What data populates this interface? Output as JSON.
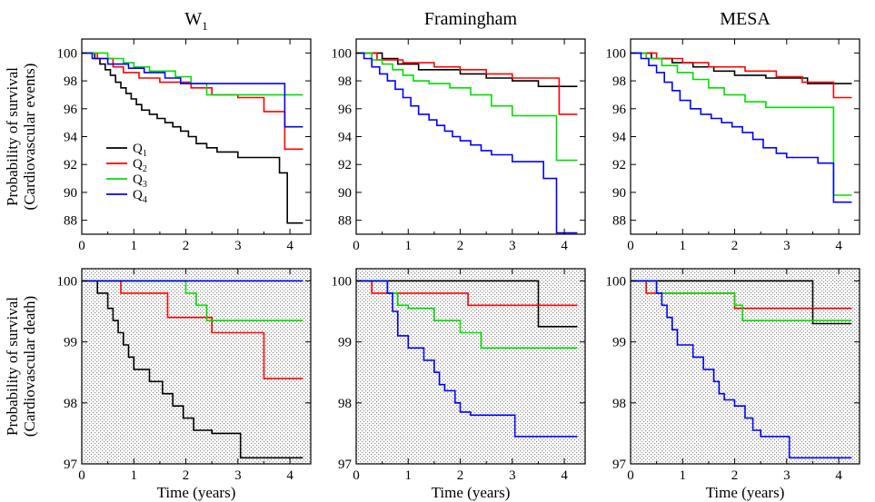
{
  "figure": {
    "column_titles": [
      {
        "base": "W",
        "sub": "1"
      },
      {
        "base": "Framingham",
        "sub": ""
      },
      {
        "base": "MESA",
        "sub": ""
      }
    ],
    "row_ylabels": [
      {
        "line1": "Probability of survival",
        "line2": "(Cardiovascular events)"
      },
      {
        "line1": "Probability of survival",
        "line2": "(Cardiovascular death)"
      }
    ],
    "xlabel": "Time (years)"
  },
  "legend": {
    "items": [
      {
        "base": "Q",
        "sub": "1",
        "color": "#000000"
      },
      {
        "base": "Q",
        "sub": "2",
        "color": "#ff0000"
      },
      {
        "base": "Q",
        "sub": "3",
        "color": "#00dd00"
      },
      {
        "base": "Q",
        "sub": "4",
        "color": "#0000ff"
      }
    ]
  },
  "colors": {
    "Q1": "#000000",
    "Q2": "#ff0000",
    "Q3": "#00dd00",
    "Q4": "#0000ff",
    "shaded_bg": "#e6e6e6"
  },
  "chart_data": [
    {
      "type": "line",
      "step": true,
      "title": "W1",
      "row": 0,
      "col": 0,
      "xlabel": "",
      "ylabel": "Probability of survival (Cardiovascular events)",
      "xlim": [
        0,
        4.4
      ],
      "ylim": [
        87,
        101
      ],
      "xticks": [
        0,
        1,
        2,
        3,
        4
      ],
      "yticks": [
        88,
        90,
        92,
        94,
        96,
        98,
        100
      ],
      "shaded": false,
      "series": [
        {
          "name": "Q1",
          "x": [
            0,
            0.25,
            0.35,
            0.45,
            0.55,
            0.65,
            0.75,
            0.85,
            0.95,
            1.05,
            1.15,
            1.3,
            1.45,
            1.6,
            1.75,
            1.9,
            2.05,
            2.2,
            2.4,
            2.6,
            3.0,
            3.8,
            3.95,
            4.25
          ],
          "y": [
            100,
            99.6,
            99.2,
            98.8,
            98.4,
            97.9,
            97.5,
            97.1,
            96.7,
            96.3,
            95.9,
            95.6,
            95.3,
            95.0,
            94.7,
            94.4,
            94.0,
            93.5,
            93.2,
            92.9,
            92.5,
            91.4,
            87.8,
            87.8
          ]
        },
        {
          "name": "Q2",
          "x": [
            0,
            0.3,
            0.6,
            0.8,
            1.1,
            1.5,
            2.1,
            2.5,
            3.0,
            3.5,
            3.9,
            4.25
          ],
          "y": [
            100,
            99.6,
            99.0,
            98.6,
            98.2,
            97.9,
            97.5,
            97.0,
            96.8,
            95.8,
            93.1,
            93.1
          ]
        },
        {
          "name": "Q3",
          "x": [
            0,
            0.5,
            0.8,
            1.0,
            1.3,
            1.8,
            2.1,
            2.4,
            4.25
          ],
          "y": [
            100,
            99.6,
            99.3,
            99.0,
            98.7,
            98.3,
            97.8,
            97.0,
            97.0
          ]
        },
        {
          "name": "Q4",
          "x": [
            0,
            0.2,
            0.5,
            0.9,
            1.2,
            1.6,
            1.9,
            3.9,
            4.25
          ],
          "y": [
            100,
            99.6,
            99.2,
            98.9,
            98.6,
            98.2,
            97.8,
            94.7,
            94.7
          ]
        }
      ]
    },
    {
      "type": "line",
      "step": true,
      "title": "Framingham",
      "row": 0,
      "col": 1,
      "xlabel": "",
      "ylabel": "",
      "xlim": [
        0,
        4.4
      ],
      "ylim": [
        87,
        101
      ],
      "xticks": [
        0,
        1,
        2,
        3,
        4
      ],
      "yticks": [
        88,
        90,
        92,
        94,
        96,
        98,
        100
      ],
      "shaded": false,
      "series": [
        {
          "name": "Q1",
          "x": [
            0,
            0.5,
            0.8,
            1.2,
            2.0,
            2.5,
            3.0,
            3.5,
            4.25
          ],
          "y": [
            100,
            99.6,
            99.2,
            98.8,
            98.5,
            98.2,
            98.0,
            97.6,
            97.6
          ]
        },
        {
          "name": "Q2",
          "x": [
            0,
            0.4,
            0.9,
            1.5,
            2.0,
            2.5,
            3.0,
            3.9,
            4.25
          ],
          "y": [
            100,
            99.5,
            99.3,
            99.0,
            98.8,
            98.5,
            98.2,
            95.6,
            95.6
          ]
        },
        {
          "name": "Q3",
          "x": [
            0,
            0.3,
            0.5,
            0.7,
            0.9,
            1.1,
            1.4,
            1.8,
            2.2,
            2.6,
            3.0,
            3.85,
            4.25
          ],
          "y": [
            100,
            99.5,
            99.2,
            98.8,
            98.4,
            98.0,
            97.8,
            97.5,
            97.0,
            96.2,
            95.5,
            92.3,
            92.3
          ]
        },
        {
          "name": "Q4",
          "x": [
            0,
            0.15,
            0.3,
            0.45,
            0.6,
            0.75,
            0.9,
            1.05,
            1.2,
            1.4,
            1.55,
            1.7,
            1.85,
            2.0,
            2.2,
            2.4,
            2.6,
            3.0,
            3.6,
            3.85,
            4.25
          ],
          "y": [
            100,
            99.6,
            99.0,
            98.5,
            98.0,
            97.4,
            96.8,
            96.2,
            95.6,
            95.2,
            94.8,
            94.4,
            94.0,
            93.7,
            93.4,
            93.0,
            92.7,
            92.2,
            91.0,
            87.1,
            87.1
          ]
        }
      ]
    },
    {
      "type": "line",
      "step": true,
      "title": "MESA",
      "row": 0,
      "col": 2,
      "xlabel": "",
      "ylabel": "",
      "xlim": [
        0,
        4.4
      ],
      "ylim": [
        87,
        101
      ],
      "xticks": [
        0,
        1,
        2,
        3,
        4
      ],
      "yticks": [
        88,
        90,
        92,
        94,
        96,
        98,
        100
      ],
      "shaded": false,
      "series": [
        {
          "name": "Q1",
          "x": [
            0,
            0.4,
            0.8,
            1.2,
            1.6,
            2.0,
            2.6,
            3.4,
            4.25
          ],
          "y": [
            100,
            99.6,
            99.3,
            99.0,
            98.7,
            98.4,
            98.2,
            97.8,
            97.8
          ]
        },
        {
          "name": "Q2",
          "x": [
            0,
            0.5,
            1.0,
            1.5,
            2.2,
            2.8,
            3.3,
            3.9,
            4.25
          ],
          "y": [
            100,
            99.6,
            99.3,
            99.0,
            98.7,
            98.3,
            97.9,
            96.8,
            96.8
          ]
        },
        {
          "name": "Q3",
          "x": [
            0,
            0.3,
            0.6,
            0.9,
            1.2,
            1.5,
            1.8,
            2.2,
            2.6,
            3.9,
            4.25
          ],
          "y": [
            100,
            99.6,
            99.1,
            98.6,
            98.1,
            97.5,
            97.0,
            96.5,
            96.1,
            89.8,
            89.8
          ]
        },
        {
          "name": "Q4",
          "x": [
            0,
            0.2,
            0.35,
            0.5,
            0.65,
            0.8,
            0.95,
            1.15,
            1.35,
            1.55,
            1.75,
            1.95,
            2.15,
            2.35,
            2.55,
            2.8,
            3.0,
            3.6,
            3.9,
            4.25
          ],
          "y": [
            100,
            99.6,
            99.1,
            98.6,
            97.9,
            97.3,
            96.6,
            96.0,
            95.6,
            95.3,
            95.0,
            94.7,
            94.3,
            93.8,
            93.2,
            92.8,
            92.5,
            92.1,
            89.3,
            89.3
          ]
        }
      ]
    },
    {
      "type": "line",
      "step": true,
      "title": "W1",
      "row": 1,
      "col": 0,
      "xlabel": "Time (years)",
      "ylabel": "Probability of survival (Cardiovascular death)",
      "xlim": [
        0,
        4.4
      ],
      "ylim": [
        97,
        100.2
      ],
      "xticks": [
        0,
        1,
        2,
        3,
        4
      ],
      "yticks": [
        97,
        98,
        99,
        100
      ],
      "shaded": true,
      "series": [
        {
          "name": "Q1",
          "x": [
            0,
            0.3,
            0.5,
            0.6,
            0.7,
            0.8,
            0.9,
            1.0,
            1.3,
            1.55,
            1.75,
            1.95,
            2.15,
            2.5,
            3.05,
            4.25
          ],
          "y": [
            100,
            99.8,
            99.55,
            99.35,
            99.15,
            98.95,
            98.75,
            98.55,
            98.35,
            98.15,
            97.95,
            97.75,
            97.55,
            97.5,
            97.1,
            97.1
          ]
        },
        {
          "name": "Q2",
          "x": [
            0,
            0.75,
            1.65,
            2.5,
            3.5,
            4.25
          ],
          "y": [
            100,
            99.8,
            99.4,
            99.15,
            98.4,
            98.4
          ]
        },
        {
          "name": "Q3",
          "x": [
            0,
            2.0,
            2.2,
            2.4,
            4.25
          ],
          "y": [
            100,
            99.8,
            99.6,
            99.35,
            99.35
          ]
        },
        {
          "name": "Q4",
          "x": [
            0,
            4.25
          ],
          "y": [
            100,
            100
          ]
        }
      ]
    },
    {
      "type": "line",
      "step": true,
      "title": "Framingham",
      "row": 1,
      "col": 1,
      "xlabel": "Time (years)",
      "ylabel": "",
      "xlim": [
        0,
        4.4
      ],
      "ylim": [
        97,
        100.2
      ],
      "xticks": [
        0,
        1,
        2,
        3,
        4
      ],
      "yticks": [
        97,
        98,
        99,
        100
      ],
      "shaded": true,
      "series": [
        {
          "name": "Q1",
          "x": [
            0,
            3.5,
            4.25
          ],
          "y": [
            100,
            99.25,
            99.25
          ]
        },
        {
          "name": "Q2",
          "x": [
            0,
            0.3,
            2.15,
            4.25
          ],
          "y": [
            100,
            99.8,
            99.6,
            99.6
          ]
        },
        {
          "name": "Q3",
          "x": [
            0,
            0.6,
            0.8,
            1.0,
            1.5,
            2.0,
            2.4,
            4.25
          ],
          "y": [
            100,
            99.8,
            99.6,
            99.55,
            99.35,
            99.15,
            98.9,
            98.9
          ]
        },
        {
          "name": "Q4",
          "x": [
            0,
            0.6,
            0.7,
            0.8,
            1.0,
            1.3,
            1.5,
            1.6,
            1.7,
            1.9,
            2.0,
            2.2,
            2.35,
            3.05,
            4.25
          ],
          "y": [
            100,
            99.8,
            99.5,
            99.1,
            98.9,
            98.7,
            98.5,
            98.3,
            98.2,
            98.0,
            97.85,
            97.8,
            97.8,
            97.45,
            97.45
          ]
        }
      ]
    },
    {
      "type": "line",
      "step": true,
      "title": "MESA",
      "row": 1,
      "col": 2,
      "xlabel": "Time (years)",
      "ylabel": "",
      "xlim": [
        0,
        4.4
      ],
      "ylim": [
        97,
        100.2
      ],
      "xticks": [
        0,
        1,
        2,
        3,
        4
      ],
      "yticks": [
        97,
        98,
        99,
        100
      ],
      "shaded": true,
      "series": [
        {
          "name": "Q1",
          "x": [
            0,
            3.5,
            4.25
          ],
          "y": [
            100,
            99.3,
            99.3
          ]
        },
        {
          "name": "Q2",
          "x": [
            0,
            0.3,
            2.0,
            4.25
          ],
          "y": [
            100,
            99.8,
            99.55,
            99.55
          ]
        },
        {
          "name": "Q3",
          "x": [
            0,
            0.5,
            2.0,
            2.15,
            4.25
          ],
          "y": [
            100,
            99.8,
            99.6,
            99.35,
            99.35
          ]
        },
        {
          "name": "Q4",
          "x": [
            0,
            0.5,
            0.6,
            0.7,
            0.8,
            0.9,
            1.2,
            1.4,
            1.6,
            1.7,
            1.8,
            2.0,
            2.2,
            2.35,
            2.5,
            3.05,
            4.25
          ],
          "y": [
            100,
            99.8,
            99.6,
            99.4,
            99.2,
            98.95,
            98.75,
            98.55,
            98.35,
            98.15,
            98.05,
            97.95,
            97.75,
            97.55,
            97.45,
            97.1,
            97.1
          ]
        }
      ]
    }
  ]
}
